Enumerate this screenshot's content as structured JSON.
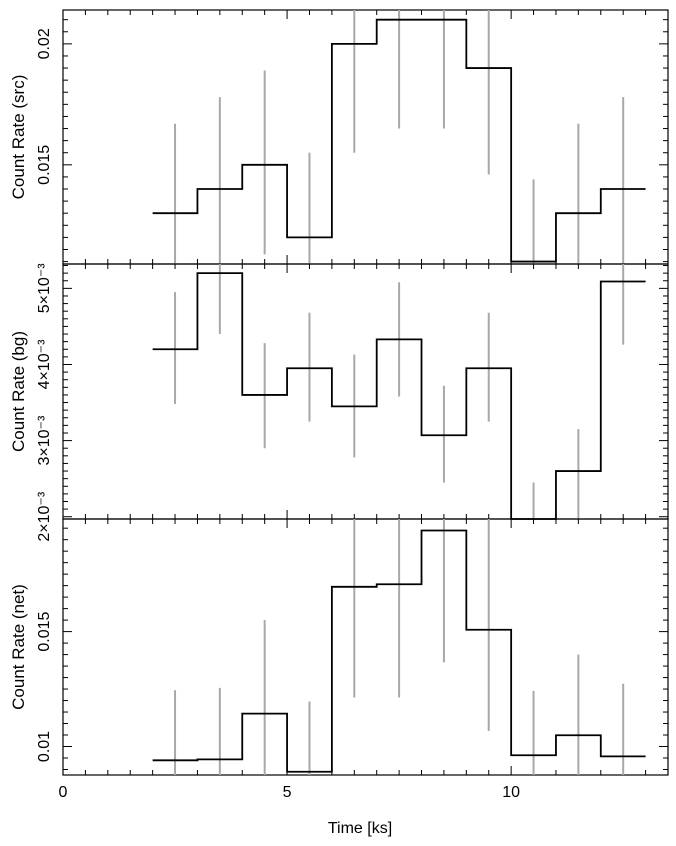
{
  "chart_data": [
    {
      "type": "line",
      "panel": "src",
      "ylabel": "Count Rate (src)",
      "xlim": [
        0,
        13.5
      ],
      "ylim": [
        0.0109,
        0.0214
      ],
      "y_ticks": [
        0.015,
        0.02
      ],
      "y_tick_labels": [
        "0.015",
        "0.02"
      ],
      "bin_edges": [
        2.0,
        3.0,
        4.0,
        5.0,
        6.0,
        7.0,
        8.0,
        9.0,
        10.0,
        11.0,
        12.0,
        13.0
      ],
      "bin_centers": [
        2.5,
        3.5,
        4.5,
        5.5,
        6.5,
        7.5,
        8.5,
        9.5,
        10.5,
        11.5,
        12.5
      ],
      "values": [
        0.013,
        0.014,
        0.015,
        0.012,
        0.02,
        0.021,
        0.021,
        0.019,
        0.011,
        0.013,
        0.014
      ],
      "err_low": [
        0.0109,
        0.0109,
        0.0113,
        0.0109,
        0.0155,
        0.0165,
        0.0165,
        0.0146,
        0.0109,
        0.0109,
        0.0109
      ],
      "err_high": [
        0.0167,
        0.0178,
        0.0189,
        0.0155,
        0.0214,
        0.0214,
        0.0214,
        0.0214,
        0.0144,
        0.0167,
        0.0178
      ]
    },
    {
      "type": "line",
      "panel": "bg",
      "ylabel": "Count Rate (bg)",
      "xlim": [
        0,
        13.5
      ],
      "ylim": [
        0.00197,
        0.00532
      ],
      "y_ticks": [
        0.002,
        0.003,
        0.004,
        0.005
      ],
      "y_tick_labels": [
        "2×10⁻³",
        "3×10⁻³",
        "4×10⁻³",
        "5×10⁻³"
      ],
      "bin_edges": [
        2.0,
        3.0,
        4.0,
        5.0,
        6.0,
        7.0,
        8.0,
        9.0,
        10.0,
        11.0,
        12.0,
        13.0
      ],
      "bin_centers": [
        2.5,
        3.5,
        4.5,
        5.5,
        6.5,
        7.5,
        8.5,
        9.5,
        10.5,
        11.5,
        12.5
      ],
      "values": [
        0.0042,
        0.0052,
        0.0036,
        0.00395,
        0.00345,
        0.00433,
        0.00307,
        0.00395,
        0.00197,
        0.0026,
        0.00509
      ],
      "err_low": [
        0.00348,
        0.0044,
        0.0029,
        0.00325,
        0.00278,
        0.00358,
        0.00245,
        0.00325,
        0.00197,
        0.00197,
        0.00426
      ],
      "err_high": [
        0.00495,
        0.00532,
        0.00428,
        0.00468,
        0.00413,
        0.00508,
        0.00372,
        0.00468,
        0.00245,
        0.00315,
        0.00532
      ]
    },
    {
      "type": "line",
      "panel": "net",
      "ylabel": "Count Rate (net)",
      "xlabel": "Time [ks]",
      "xlim": [
        0,
        13.5
      ],
      "ylim": [
        0.00876,
        0.0199
      ],
      "x_ticks": [
        0,
        5,
        10
      ],
      "x_tick_labels": [
        "0",
        "5",
        "10"
      ],
      "y_ticks": [
        0.01,
        0.015,
        0.02
      ],
      "y_tick_labels": [
        "0.01",
        "0.015",
        "2×10⁻²"
      ],
      "bin_edges": [
        2.0,
        3.0,
        4.0,
        5.0,
        6.0,
        7.0,
        8.0,
        9.0,
        10.0,
        11.0,
        12.0,
        13.0
      ],
      "bin_centers": [
        2.5,
        3.5,
        4.5,
        5.5,
        6.5,
        7.5,
        8.5,
        9.5,
        10.5,
        11.5,
        12.5
      ],
      "values": [
        0.0094,
        0.00944,
        0.01143,
        0.0089,
        0.01695,
        0.01706,
        0.0194,
        0.01508,
        0.00962,
        0.01049,
        0.00957
      ],
      "err_low": [
        0.00876,
        0.00876,
        0.00876,
        0.00876,
        0.01213,
        0.01213,
        0.01366,
        0.01068,
        0.00876,
        0.00876,
        0.00876
      ],
      "err_high": [
        0.01245,
        0.01255,
        0.0155,
        0.01196,
        0.0199,
        0.0199,
        0.0199,
        0.0199,
        0.01242,
        0.014,
        0.01273
      ]
    }
  ]
}
